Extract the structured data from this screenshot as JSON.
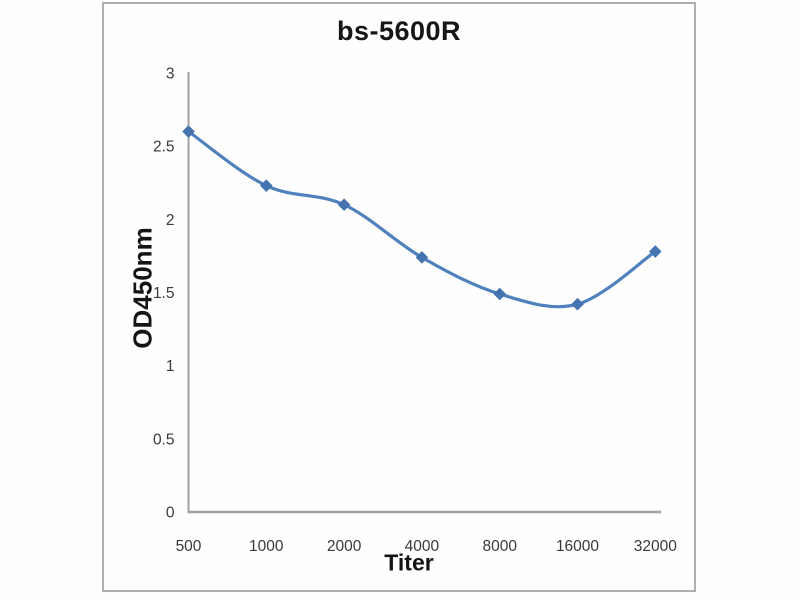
{
  "chart_data": {
    "type": "line",
    "title": "bs-5600R",
    "xlabel": "Titer",
    "ylabel": "OD450nm",
    "categories": [
      "500",
      "1000",
      "2000",
      "4000",
      "8000",
      "16000",
      "32000"
    ],
    "series": [
      {
        "name": "bs-5600R",
        "values": [
          2.6,
          2.23,
          2.1,
          1.74,
          1.49,
          1.42,
          1.78
        ]
      }
    ],
    "ylim": [
      0,
      3
    ],
    "yticks": [
      "0",
      "0.5",
      "1",
      "1.5",
      "2",
      "2.5",
      "3"
    ],
    "grid": false,
    "legend": "none",
    "smooth": true,
    "marker": "diamond",
    "line_color": "#4f81bd",
    "marker_color": "#4473af",
    "axis_color": "#a2a2a2",
    "tick_text_color": "#3a3a3a"
  },
  "frame": {
    "border_color": "#aeaeae"
  }
}
